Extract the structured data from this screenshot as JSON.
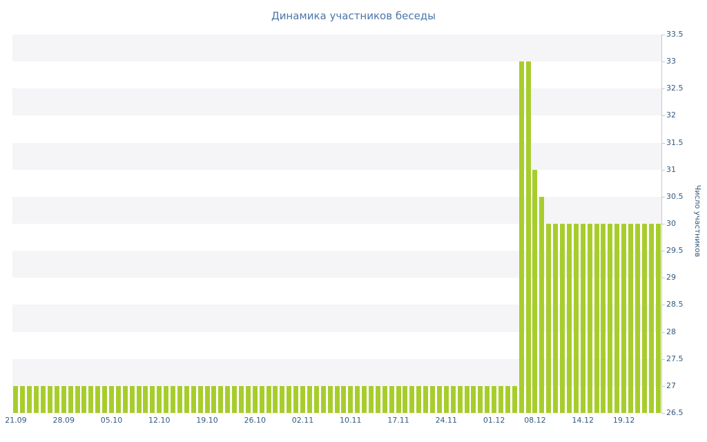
{
  "chart_data": {
    "type": "bar",
    "title": "Динамика участников беседы",
    "ylabel": "Число участников",
    "xlabel": "",
    "ylim": [
      26.5,
      33.5
    ],
    "ytick_step": 0.5,
    "yticks": [
      26.5,
      27,
      27.5,
      28,
      28.5,
      29,
      29.5,
      30,
      30.5,
      31,
      31.5,
      32,
      32.5,
      33,
      33.5
    ],
    "x_ticks": [
      {
        "i": 0,
        "label": "21.09"
      },
      {
        "i": 7,
        "label": "28.09"
      },
      {
        "i": 14,
        "label": "05.10"
      },
      {
        "i": 21,
        "label": "12.10"
      },
      {
        "i": 28,
        "label": "19.10"
      },
      {
        "i": 35,
        "label": "26.10"
      },
      {
        "i": 42,
        "label": "02.11"
      },
      {
        "i": 49,
        "label": "10.11"
      },
      {
        "i": 56,
        "label": "17.11"
      },
      {
        "i": 63,
        "label": "24.11"
      },
      {
        "i": 70,
        "label": "01.12"
      },
      {
        "i": 76,
        "label": "08.12"
      },
      {
        "i": 83,
        "label": "14.12"
      },
      {
        "i": 89,
        "label": "19.12"
      }
    ],
    "values": [
      27,
      27,
      27,
      27,
      27,
      27,
      27,
      27,
      27,
      27,
      27,
      27,
      27,
      27,
      27,
      27,
      27,
      27,
      27,
      27,
      27,
      27,
      27,
      27,
      27,
      27,
      27,
      27,
      27,
      27,
      27,
      27,
      27,
      27,
      27,
      27,
      27,
      27,
      27,
      27,
      27,
      27,
      27,
      27,
      27,
      27,
      27,
      27,
      27,
      27,
      27,
      27,
      27,
      27,
      27,
      27,
      27,
      27,
      27,
      27,
      27,
      27,
      27,
      27,
      27,
      27,
      27,
      27,
      27,
      27,
      27,
      27,
      27,
      27,
      33,
      33,
      31,
      30.5,
      30,
      30,
      30,
      30,
      30,
      30,
      30,
      30,
      30,
      30,
      30,
      30,
      30,
      30,
      30,
      30,
      30
    ],
    "grid": "striped-horizontal-bands",
    "legend": "none",
    "colors": {
      "bar": "#a7cd2d",
      "stripe": "#f5f4f6",
      "axis": "#c6c6d2",
      "tick_label": "#33587e",
      "title": "#4a76a8"
    }
  }
}
